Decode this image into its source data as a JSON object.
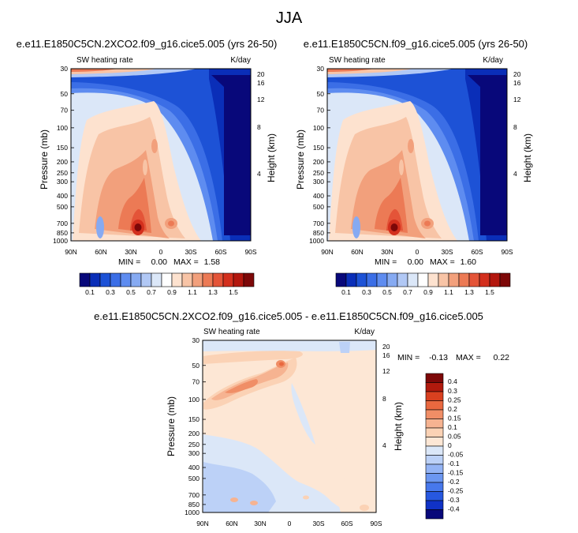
{
  "main_title": "JJA",
  "colors": {
    "palette": [
      "#08087a",
      "#0a2eb8",
      "#1d52d6",
      "#3b6ee6",
      "#5e8cf0",
      "#86aaf2",
      "#b1c8f5",
      "#dbe7f8",
      "#ffffff",
      "#fde2cf",
      "#f8c4a6",
      "#f2a07c",
      "#ec7a55",
      "#e45438",
      "#d32f1d",
      "#b3170e",
      "#7d0808"
    ],
    "diff_palette": [
      "#08087a",
      "#1032c6",
      "#2758e0",
      "#4778ec",
      "#6c97f1",
      "#94b4f5",
      "#bcd1f7",
      "#dbe7f8",
      "#fde7d5",
      "#fbd2b5",
      "#f6b391",
      "#f08e66",
      "#e9683f",
      "#d9401f",
      "#b11a0d",
      "#7d0808"
    ]
  },
  "chart_data": [
    {
      "type": "heatmap",
      "title": "e.e11.E1850C5CN.2XCO2.f09_g16.cice5.005 (yrs 26-50)",
      "left_label": "SW heating rate",
      "right_label": "K/day",
      "xlabel": "",
      "ylabel": "Pressure (mb)",
      "y2label": "Height (km)",
      "x_ticks": [
        "90N",
        "60N",
        "30N",
        "0",
        "30S",
        "60S",
        "90S"
      ],
      "y_ticks": [
        "30",
        "50",
        "70",
        "100",
        "150",
        "200",
        "250",
        "300",
        "400",
        "500",
        "700",
        "850",
        "1000"
      ],
      "y2_ticks": [
        "20",
        "16",
        "12",
        "8",
        "4"
      ],
      "min_label": "MIN =",
      "min": "0.00",
      "max_label": "MAX =",
      "max": "1.58",
      "colorbar_labels": [
        "0.1",
        "0.3",
        "0.5",
        "0.7",
        "0.9",
        "1.1",
        "1.3",
        "1.5"
      ],
      "peak": {
        "lat": 20,
        "p": 940
      }
    },
    {
      "type": "heatmap",
      "title": "e.e11.E1850C5CN.f09_g16.cice5.005 (yrs 26-50)",
      "left_label": "SW heating rate",
      "right_label": "K/day",
      "xlabel": "",
      "ylabel": "Pressure (mb)",
      "y2label": "Height (km)",
      "x_ticks": [
        "90N",
        "60N",
        "30N",
        "0",
        "30S",
        "60S",
        "90S"
      ],
      "y_ticks": [
        "30",
        "50",
        "70",
        "100",
        "150",
        "200",
        "250",
        "300",
        "400",
        "500",
        "700",
        "850",
        "1000"
      ],
      "y2_ticks": [
        "20",
        "16",
        "12",
        "8",
        "4"
      ],
      "min_label": "MIN =",
      "min": "0.00",
      "max_label": "MAX =",
      "max": "1.60",
      "colorbar_labels": [
        "0.1",
        "0.3",
        "0.5",
        "0.7",
        "0.9",
        "1.1",
        "1.3",
        "1.5"
      ],
      "peak": {
        "lat": 20,
        "p": 940
      }
    },
    {
      "type": "heatmap",
      "title": "e.e11.E1850C5CN.2XCO2.f09_g16.cice5.005 - e.e11.E1850C5CN.f09_g16.cice5.005",
      "left_label": "SW heating rate",
      "right_label": "K/day",
      "xlabel": "",
      "ylabel": "Pressure (mb)",
      "y2label": "Height (km)",
      "x_ticks": [
        "90N",
        "60N",
        "30N",
        "0",
        "30S",
        "60S",
        "90S"
      ],
      "y_ticks": [
        "30",
        "50",
        "70",
        "100",
        "150",
        "200",
        "250",
        "300",
        "400",
        "500",
        "700",
        "850",
        "1000"
      ],
      "y2_ticks": [
        "20",
        "16",
        "12",
        "8",
        "4"
      ],
      "min_label": "MIN =",
      "min": "-0.13",
      "max_label": "MAX =",
      "max": "0.22",
      "colorbar_labels": [
        "0.4",
        "0.3",
        "0.25",
        "0.2",
        "0.15",
        "0.1",
        "0.05",
        "0",
        "-0.05",
        "-0.1",
        "-0.15",
        "-0.2",
        "-0.25",
        "-0.3",
        "-0.4"
      ]
    }
  ]
}
